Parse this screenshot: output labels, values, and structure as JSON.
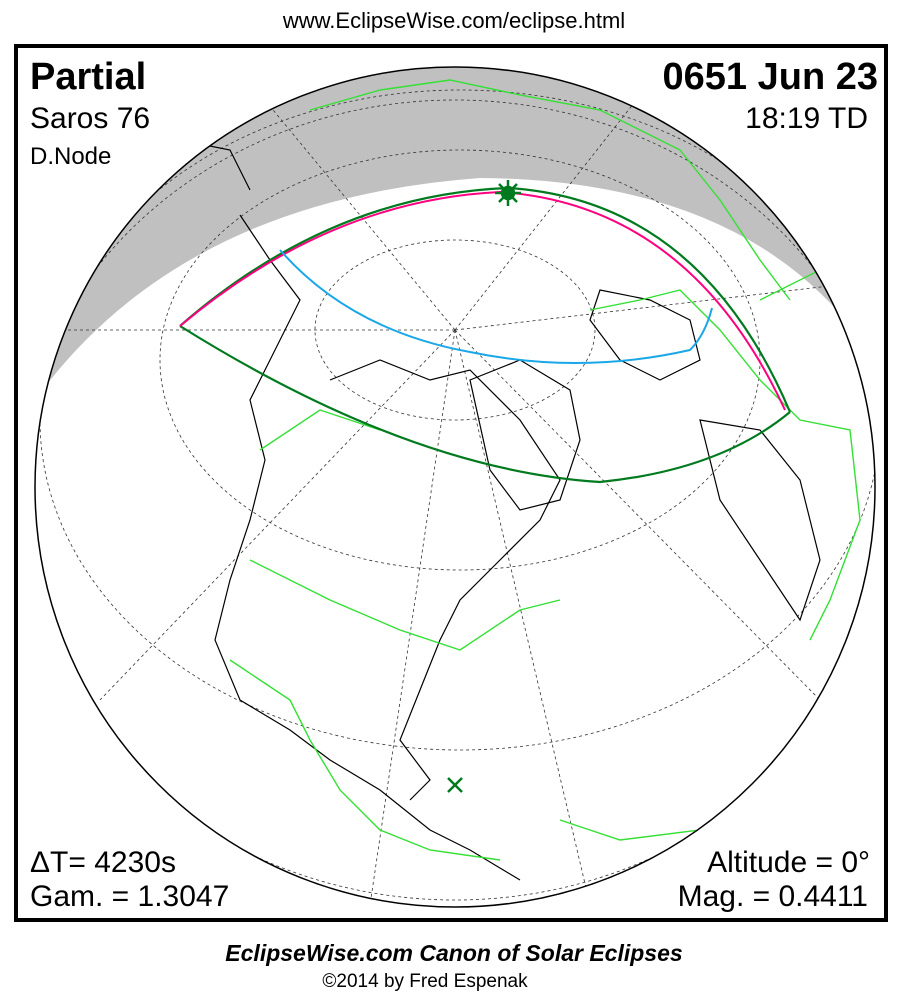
{
  "header_url": "www.EclipseWise.com/eclipse.html",
  "eclipse": {
    "type": "Partial",
    "saros": "Saros  76",
    "node": "D.Node",
    "date": "0651 Jun 23",
    "time": "18:19 TD",
    "delta_t": "ΔT=   4230s",
    "gamma": "Gam. = 1.3047",
    "altitude": "Altitude =  0°",
    "magnitude": "Mag. = 0.4411"
  },
  "map": {
    "colors": {
      "night_shade": "#c0c0c0",
      "penumbra_limits": "#007a1e",
      "max_eclipse_at_sunrise_sunset": "#ff0080",
      "mid_line": "#1aa7e8",
      "borders": "#33e033",
      "coastlines": "#000000"
    },
    "markers": [
      "sun-star-icon",
      "greatest-eclipse-x-icon"
    ]
  },
  "footer": {
    "title": "EclipseWise.com Canon of Solar Eclipses",
    "copyright": "©2014 by Fred Espenak"
  }
}
